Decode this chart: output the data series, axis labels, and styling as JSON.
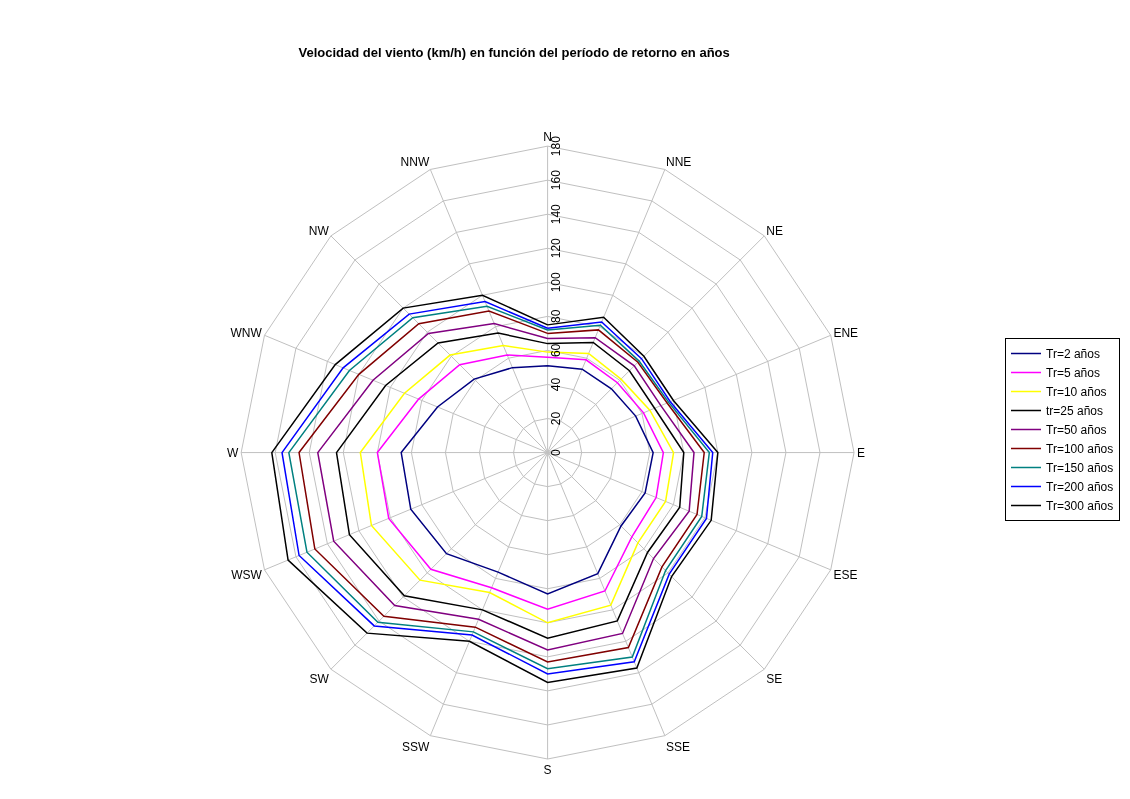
{
  "chart_data": {
    "type": "radar",
    "title": "Velocidad del viento (km/h) en función del período de retorno en años",
    "categories": [
      "N",
      "NNE",
      "NE",
      "ENE",
      "E",
      "ESE",
      "SE",
      "SSE",
      "S",
      "SSW",
      "SW",
      "WSW",
      "W",
      "WNW",
      "NW",
      "NNW"
    ],
    "ylim": [
      0,
      180
    ],
    "yticks": [
      0,
      20,
      40,
      60,
      80,
      100,
      120,
      140,
      160,
      180
    ],
    "grid": true,
    "legend": "right",
    "marker": "none",
    "line_style": "solid",
    "series": [
      {
        "name": "Tr=2 años",
        "color": "#000080",
        "values": [
          51,
          53,
          53,
          56,
          62,
          62,
          61,
          77,
          83,
          76,
          84,
          87,
          86,
          70,
          61,
          54
        ]
      },
      {
        "name": "Tr=5 años",
        "color": "#ff00ff",
        "values": [
          56,
          59,
          58,
          61,
          68,
          69,
          70,
          88,
          92,
          86,
          97,
          101,
          100,
          82,
          73,
          62
        ]
      },
      {
        "name": "Tr=10 años",
        "color": "#ffff00",
        "values": [
          59,
          63,
          61,
          65,
          74,
          75,
          75,
          97,
          100,
          89,
          106,
          112,
          110,
          91,
          81,
          68
        ]
      },
      {
        "name": "tr=25 años",
        "color": "#000000",
        "values": [
          64,
          70,
          68,
          68,
          80,
          84,
          83,
          107,
          109,
          100,
          119,
          126,
          124,
          103,
          91,
          76
        ]
      },
      {
        "name": "Tr=50 años",
        "color": "#800080",
        "values": [
          67,
          73,
          72,
          72,
          86,
          90,
          88,
          115,
          116,
          106,
          127,
          136,
          135,
          111,
          99,
          82
        ]
      },
      {
        "name": "Tr=100 años",
        "color": "#800000",
        "values": [
          70,
          78,
          75,
          76,
          92,
          95,
          95,
          124,
          123,
          111,
          136,
          148,
          146,
          120,
          107,
          90
        ]
      },
      {
        "name": "Tr=150 años",
        "color": "#008080",
        "values": [
          72,
          81,
          76,
          77,
          95,
          98,
          98,
          130,
          127,
          114,
          141,
          153,
          152,
          126,
          112,
          93
        ]
      },
      {
        "name": "Tr=200 años",
        "color": "#0000ff",
        "values": [
          73,
          83,
          78,
          78,
          97,
          101,
          101,
          133,
          130,
          116,
          144,
          158,
          156,
          130,
          115,
          96
        ]
      },
      {
        "name": "Tr=300 años",
        "color": "#000000",
        "values": [
          75,
          86,
          80,
          80,
          100,
          104,
          103,
          137,
          135,
          120,
          150,
          165,
          162,
          135,
          120,
          100
        ]
      }
    ]
  }
}
